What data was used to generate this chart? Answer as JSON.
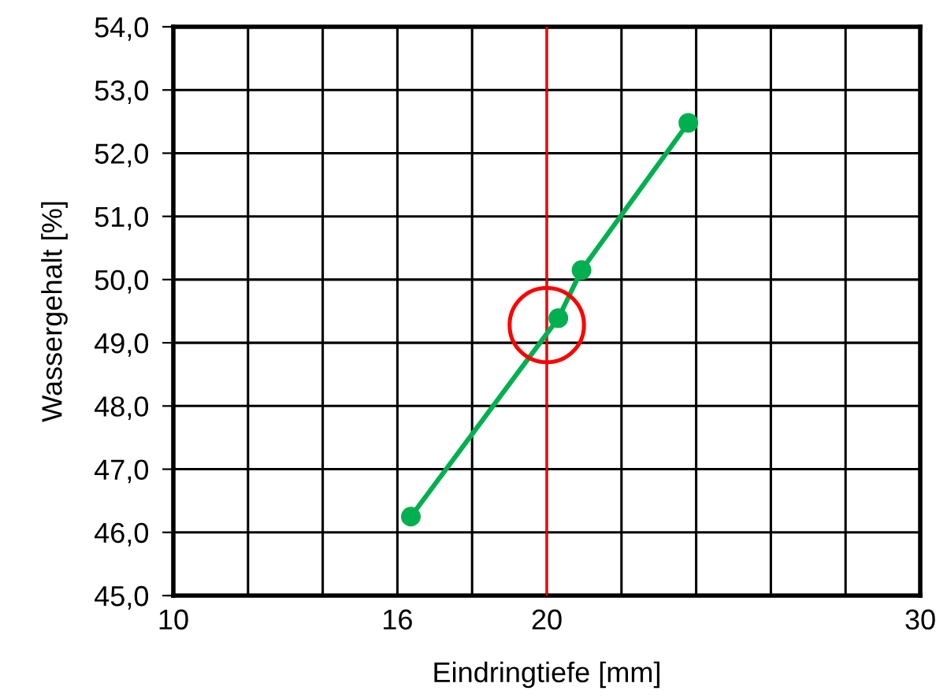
{
  "chart_data": {
    "type": "line",
    "xlabel": "Eindringtiefe [mm]",
    "ylabel": "Wassergehalt [%]",
    "xlim": [
      10,
      30
    ],
    "xticks": [
      10,
      {
        "value": 12,
        "label": null
      },
      {
        "value": 14,
        "label": null
      },
      16,
      {
        "value": 18,
        "label": null
      },
      20,
      {
        "value": 22,
        "label": null
      },
      {
        "value": 24,
        "label": null
      },
      {
        "value": 26,
        "label": null
      },
      {
        "value": 28,
        "label": null
      },
      30
    ],
    "ylim": [
      45,
      54
    ],
    "yticks": [
      {
        "value": 45,
        "label": "45,0"
      },
      {
        "value": 46,
        "label": "46,0"
      },
      {
        "value": 47,
        "label": "47,0"
      },
      {
        "value": 48,
        "label": "48,0"
      },
      {
        "value": 49,
        "label": "49,0"
      },
      {
        "value": 50,
        "label": "50,0"
      },
      {
        "value": 51,
        "label": "51,0"
      },
      {
        "value": 52,
        "label": "52,0"
      },
      {
        "value": 53,
        "label": "53,0"
      },
      {
        "value": 54,
        "label": "54,0"
      }
    ],
    "grid": true,
    "marker": "circle",
    "series": [
      {
        "color": "#00b050",
        "x": [
          16.36,
          20.31,
          20.93,
          23.79
        ],
        "values": [
          46.25,
          49.39,
          50.15,
          52.48
        ]
      },
      {
        "type": "scatter",
        "color": "#ff0000",
        "x": [
          20.0
        ],
        "values": [
          49.28
        ]
      }
    ],
    "ref_lines": [
      {
        "axis": "x",
        "value": 20,
        "color": "#ff0000"
      }
    ]
  }
}
